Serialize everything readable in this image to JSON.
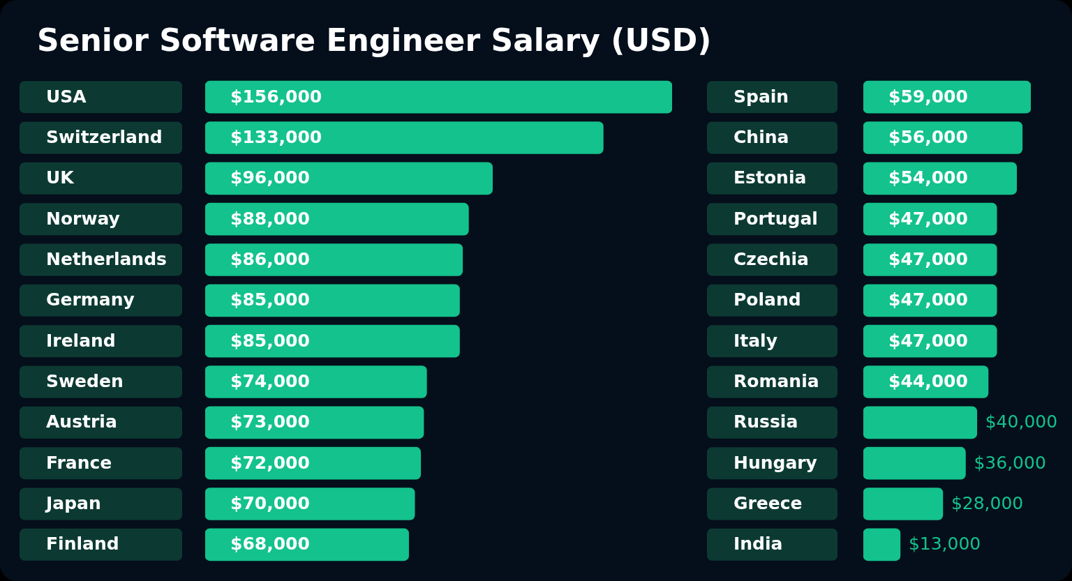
{
  "chart_data": [
    {
      "type": "bar",
      "orientation": "horizontal",
      "title": "Senior Software Engineer Salary (USD)",
      "color": "#13c28c",
      "categories": [
        "USA",
        "Switzerland",
        "UK",
        "Norway",
        "Netherlands",
        "Germany",
        "Ireland",
        "Sweden",
        "Austria",
        "France",
        "Japan",
        "Finland"
      ],
      "values": [
        156000,
        133000,
        96000,
        88000,
        86000,
        85000,
        85000,
        74000,
        73000,
        72000,
        70000,
        68000
      ],
      "value_labels": [
        "$156,000",
        "$133,000",
        "$96,000",
        "$88,000",
        "$86,000",
        "$85,000",
        "$85,000",
        "$74,000",
        "$73,000",
        "$72,000",
        "$70,000",
        "$68,000"
      ]
    },
    {
      "type": "bar",
      "orientation": "horizontal",
      "color": "#13c28c",
      "categories": [
        "Spain",
        "China",
        "Estonia",
        "Portugal",
        "Czechia",
        "Poland",
        "Italy",
        "Romania",
        "Russia",
        "Hungary",
        "Greece",
        "India"
      ],
      "values": [
        59000,
        56000,
        54000,
        47000,
        47000,
        47000,
        47000,
        44000,
        40000,
        36000,
        28000,
        13000
      ],
      "value_labels": [
        "$59,000",
        "$56,000",
        "$54,000",
        "$47,000",
        "$47,000",
        "$47,000",
        "$47,000",
        "$44,000",
        "$40,000",
        "$36,000",
        "$28,000",
        "$13,000"
      ]
    }
  ]
}
